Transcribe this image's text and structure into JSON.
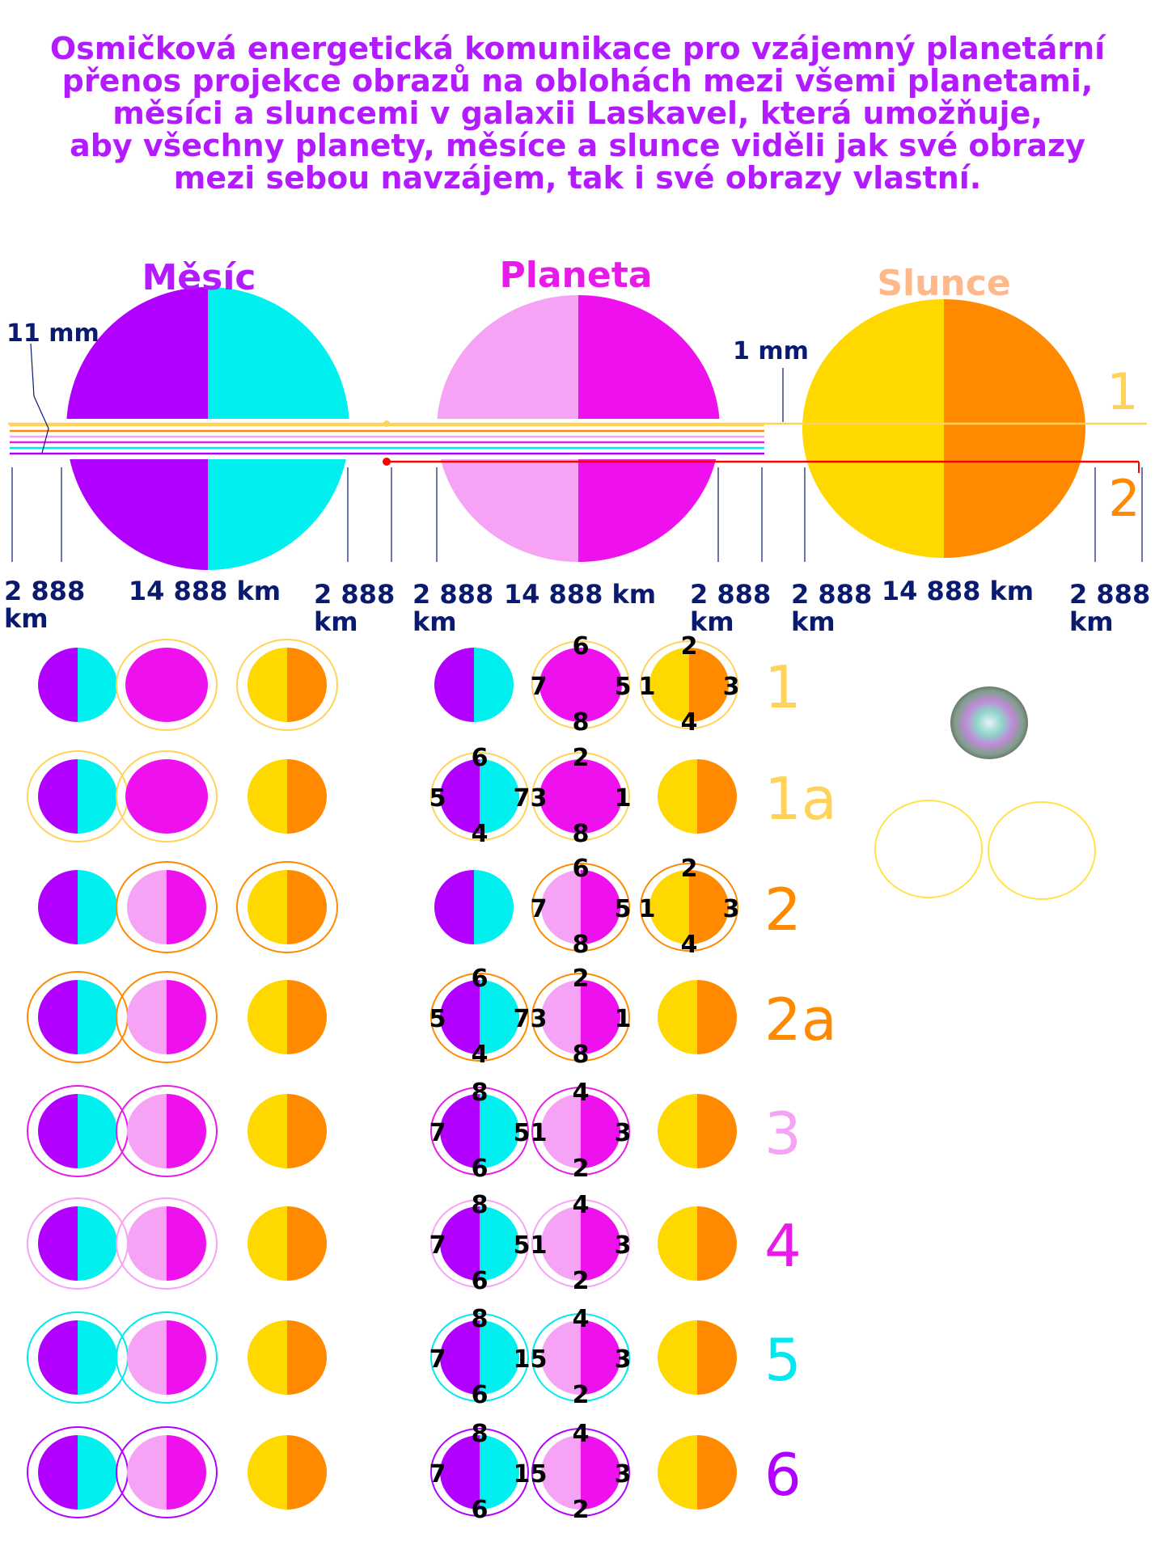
{
  "title_lines": [
    "Osmičková energetická komunikace pro vzájemný planetární",
    "přenos projekce obrazů na oblohách mezi všemi planetami,",
    "měsíci a sluncemi v galaxii Laskavel, která umožňuje,",
    "aby všechny planety, měsíce a slunce viděli jak své obrazy",
    "mezi sebou navzájem, tak i své obrazy vlastní."
  ],
  "bodies": [
    {
      "name": "Měsíc",
      "left_color": "#b100ff",
      "right_color": "#00f0f0",
      "label_color": "#b31bff"
    },
    {
      "name": "Planeta",
      "left_color": "#f7a3f5",
      "right_color": "#ee11ee",
      "label_color": "#e81ae8"
    },
    {
      "name": "Slunce",
      "left_color": "#ffd800",
      "right_color": "#ff8a00",
      "label_color": "#ffb88a"
    }
  ],
  "measures": {
    "left_gap": "11 mm",
    "right_gap": "1 mm",
    "diameter": "14 888 km",
    "spacing_num": "2 888",
    "spacing_unit": "km"
  },
  "beam_labels": [
    {
      "text": "1",
      "color": "#ffd35a"
    },
    {
      "text": "2",
      "color": "#ff8a00"
    }
  ],
  "rows": [
    {
      "label": "1",
      "color": "#ffd35a",
      "ring": "#ffd35a",
      "left_rings": [
        false,
        true,
        true
      ],
      "left_planet": "solid",
      "right_rings": [
        false,
        true,
        true
      ],
      "right_planet": "solid",
      "moon_nums": null,
      "planet_nums": [
        "6",
        "8",
        "7",
        "5"
      ],
      "sun_nums": [
        "2",
        "4",
        "1",
        "3"
      ]
    },
    {
      "label": "1a",
      "color": "#ffd35a",
      "ring": "#ffd35a",
      "left_rings": [
        true,
        true,
        false
      ],
      "left_planet": "solid",
      "right_rings": [
        true,
        true,
        false
      ],
      "right_planet": "solid",
      "moon_nums": [
        "6",
        "4",
        "5",
        "7"
      ],
      "planet_nums": [
        "2",
        "8",
        "3",
        "1"
      ],
      "sun_nums": null
    },
    {
      "label": "2",
      "color": "#ff8a00",
      "ring": "#ff8a00",
      "left_rings": [
        false,
        true,
        true
      ],
      "left_planet": "split",
      "right_rings": [
        false,
        true,
        true
      ],
      "right_planet": "split",
      "moon_nums": null,
      "planet_nums": [
        "6",
        "8",
        "7",
        "5"
      ],
      "sun_nums": [
        "2",
        "4",
        "1",
        "3"
      ]
    },
    {
      "label": "2a",
      "color": "#ff8a00",
      "ring": "#ff8a00",
      "left_rings": [
        true,
        true,
        false
      ],
      "left_planet": "split",
      "right_rings": [
        true,
        true,
        false
      ],
      "right_planet": "split",
      "moon_nums": [
        "6",
        "4",
        "5",
        "7"
      ],
      "planet_nums": [
        "2",
        "8",
        "3",
        "1"
      ],
      "sun_nums": null
    },
    {
      "label": "3",
      "color": "#f7a3f5",
      "ring": "#e81ae8",
      "left_rings": [
        true,
        true,
        false
      ],
      "left_planet": "split",
      "right_rings": [
        true,
        true,
        false
      ],
      "right_planet": "split",
      "moon_nums": [
        "8",
        "6",
        "7",
        "5"
      ],
      "planet_nums": [
        "4",
        "2",
        "1",
        "3"
      ],
      "sun_nums": null
    },
    {
      "label": "4",
      "color": "#e81ae8",
      "ring": "#f7a3f5",
      "left_rings": [
        true,
        true,
        false
      ],
      "left_planet": "split",
      "right_rings": [
        true,
        true,
        false
      ],
      "right_planet": "split",
      "moon_nums": [
        "8",
        "6",
        "7",
        "5"
      ],
      "planet_nums": [
        "4",
        "2",
        "1",
        "3"
      ],
      "sun_nums": null
    },
    {
      "label": "5",
      "color": "#00e8f0",
      "ring": "#00e8f0",
      "left_rings": [
        true,
        true,
        false
      ],
      "left_planet": "split",
      "right_rings": [
        true,
        true,
        false
      ],
      "right_planet": "split",
      "moon_nums": [
        "8",
        "6",
        "7",
        "1"
      ],
      "planet_nums": [
        "4",
        "2",
        "5",
        "3"
      ],
      "sun_nums": null
    },
    {
      "label": "6",
      "color": "#b100ff",
      "ring": "#b100ff",
      "left_rings": [
        true,
        true,
        false
      ],
      "left_planet": "split",
      "right_rings": [
        true,
        true,
        false
      ],
      "right_planet": "split",
      "moon_nums": [
        "8",
        "6",
        "7",
        "1"
      ],
      "planet_nums": [
        "4",
        "2",
        "5",
        "3"
      ],
      "sun_nums": null
    }
  ],
  "side_ring_color": "#ffe34d"
}
